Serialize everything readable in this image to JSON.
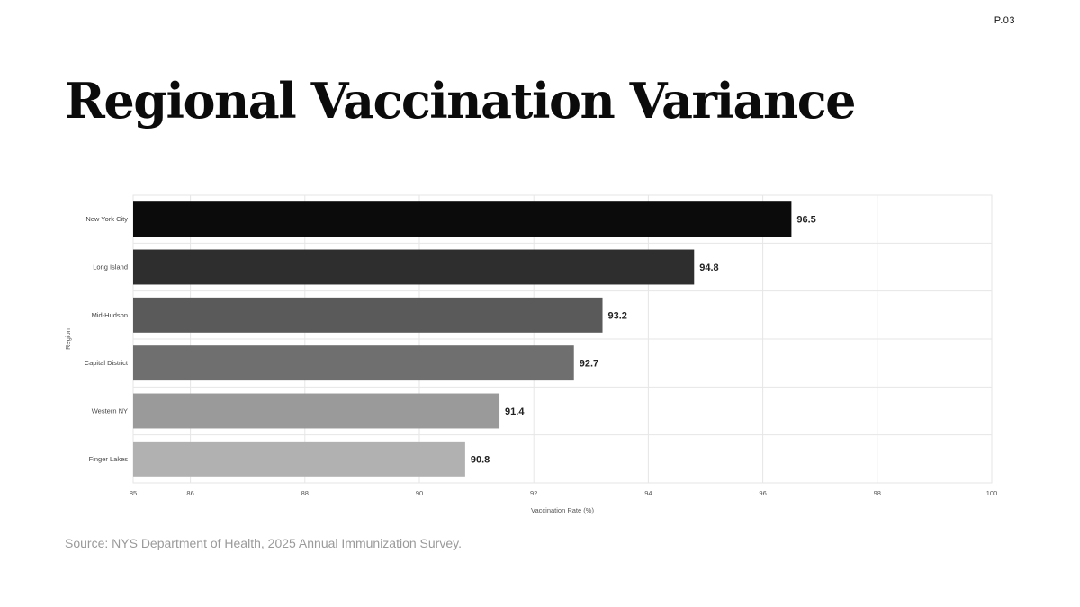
{
  "page": {
    "number": "P.03"
  },
  "title": "Regional Vaccination Variance",
  "source": "Source: NYS Department of Health, 2025 Annual Immunization Survey.",
  "colors": {
    "background": "#ffffff",
    "bar_shades": [
      "#0b0b0b",
      "#2e2e2e",
      "#5a5a5a",
      "#6f6f6f",
      "#9a9a9a",
      "#b1b1b1"
    ],
    "grid": "#e6e6e6",
    "source_text": "#9a9a9a"
  },
  "chart_data": {
    "type": "bar",
    "orientation": "horizontal",
    "categories": [
      "New York City",
      "Long Island",
      "Mid-Hudson",
      "Capital District",
      "Western NY",
      "Finger Lakes"
    ],
    "values": [
      96.5,
      94.8,
      93.2,
      92.7,
      91.4,
      90.8
    ],
    "data_labels": [
      "96.5",
      "94.8",
      "93.2",
      "92.7",
      "91.4",
      "90.8"
    ],
    "xlabel": "Vaccination Rate (%)",
    "ylabel": "Region",
    "xlim": [
      85,
      100
    ],
    "xticks": [
      85,
      86,
      88,
      90,
      92,
      94,
      96,
      98,
      100
    ],
    "grid": true,
    "legend": "none"
  }
}
